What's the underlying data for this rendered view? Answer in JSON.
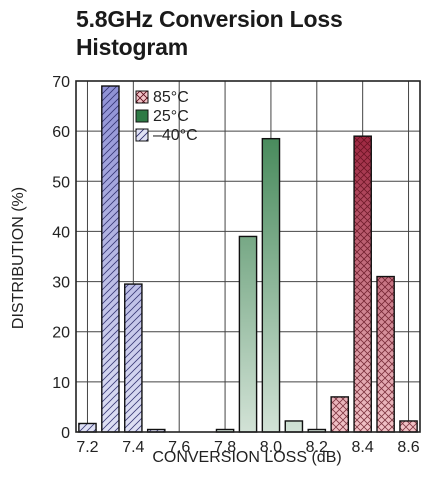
{
  "chart_data": {
    "type": "bar",
    "title": [
      "5.8GHz Conversion Loss",
      "Histogram"
    ],
    "xlabel": "CONVERSION LOSS (dB)",
    "ylabel": "DISTRIBUTION (%)",
    "xlim": [
      7.15,
      8.65
    ],
    "ylim": [
      0,
      70
    ],
    "xticks": [
      "7.2",
      "7.4",
      "7.6",
      "7.8",
      "8.0",
      "8.2",
      "8.4",
      "8.6"
    ],
    "yticks": [
      "0",
      "10",
      "20",
      "30",
      "40",
      "50",
      "60",
      "70"
    ],
    "grid": true,
    "legend_position": "top-left",
    "series": [
      {
        "name": "85°C",
        "pattern": "crosshatch",
        "color_top": "#8e0a28",
        "color_bottom": "#f2c4c8",
        "x": [
          8.3,
          8.4,
          8.5,
          8.6
        ],
        "values": [
          7,
          59,
          31,
          2.2
        ]
      },
      {
        "name": "25°C",
        "pattern": "solid",
        "color_top": "#2e7a45",
        "color_bottom": "#d2e2d6",
        "x": [
          7.8,
          7.9,
          8.0,
          8.1,
          8.2
        ],
        "values": [
          0.5,
          39,
          58.5,
          2.2,
          0.5
        ]
      },
      {
        "name": "–40°C",
        "pattern": "diagonal",
        "color_top": "#8d8fd4",
        "color_bottom": "#dfe1f4",
        "x": [
          7.2,
          7.3,
          7.4,
          7.5
        ],
        "values": [
          1.7,
          69,
          29.5,
          0.5
        ]
      }
    ]
  }
}
